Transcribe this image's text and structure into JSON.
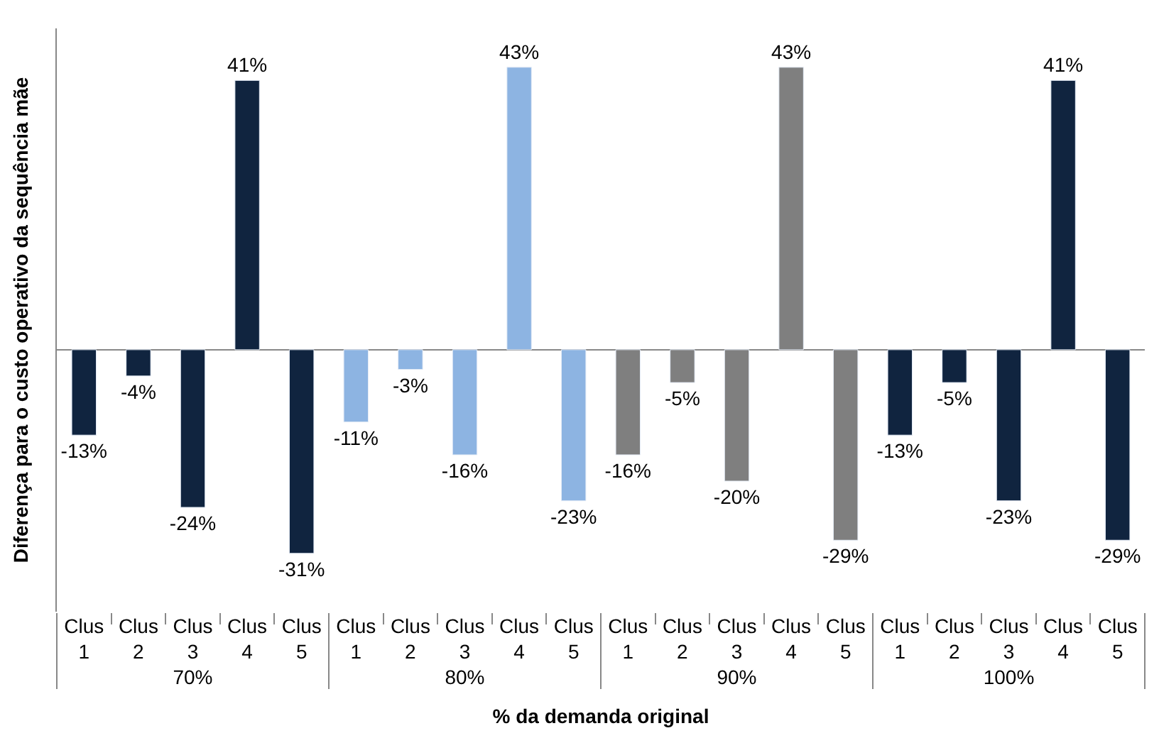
{
  "chart_data": {
    "type": "bar",
    "xlabel": "% da demanda original",
    "ylabel": "Diferença para o custo operativo da sequência mãe",
    "categories": [
      "Clus 1",
      "Clus 2",
      "Clus 3",
      "Clus 4",
      "Clus 5",
      "Clus 1",
      "Clus 2",
      "Clus 3",
      "Clus 4",
      "Clus 5",
      "Clus 1",
      "Clus 2",
      "Clus 3",
      "Clus 4",
      "Clus 5",
      "Clus 1",
      "Clus 2",
      "Clus 3",
      "Clus 4",
      "Clus 5"
    ],
    "values": [
      -13,
      -4,
      -24,
      41,
      -31,
      -11,
      -3,
      -16,
      43,
      -23,
      -16,
      -5,
      -20,
      43,
      -29,
      -13,
      -5,
      -23,
      41,
      -29
    ],
    "value_labels": [
      "-13%",
      "-4%",
      "-24%",
      "41%",
      "-31%",
      "-11%",
      "-3%",
      "-16%",
      "43%",
      "-23%",
      "-16%",
      "-5%",
      "-20%",
      "43%",
      "-29%",
      "-13%",
      "-5%",
      "-23%",
      "41%",
      "-29%"
    ],
    "colors": [
      "#10243f",
      "#10243f",
      "#10243f",
      "#10243f",
      "#10243f",
      "#8db4e2",
      "#8db4e2",
      "#8db4e2",
      "#8db4e2",
      "#8db4e2",
      "#7f7f7f",
      "#7f7f7f",
      "#7f7f7f",
      "#7f7f7f",
      "#7f7f7f",
      "#10243f",
      "#10243f",
      "#10243f",
      "#10243f",
      "#10243f"
    ],
    "annotations": [
      "70%",
      "80%",
      "90%",
      "100%"
    ],
    "tick_labels": "x",
    "legend": false
  }
}
